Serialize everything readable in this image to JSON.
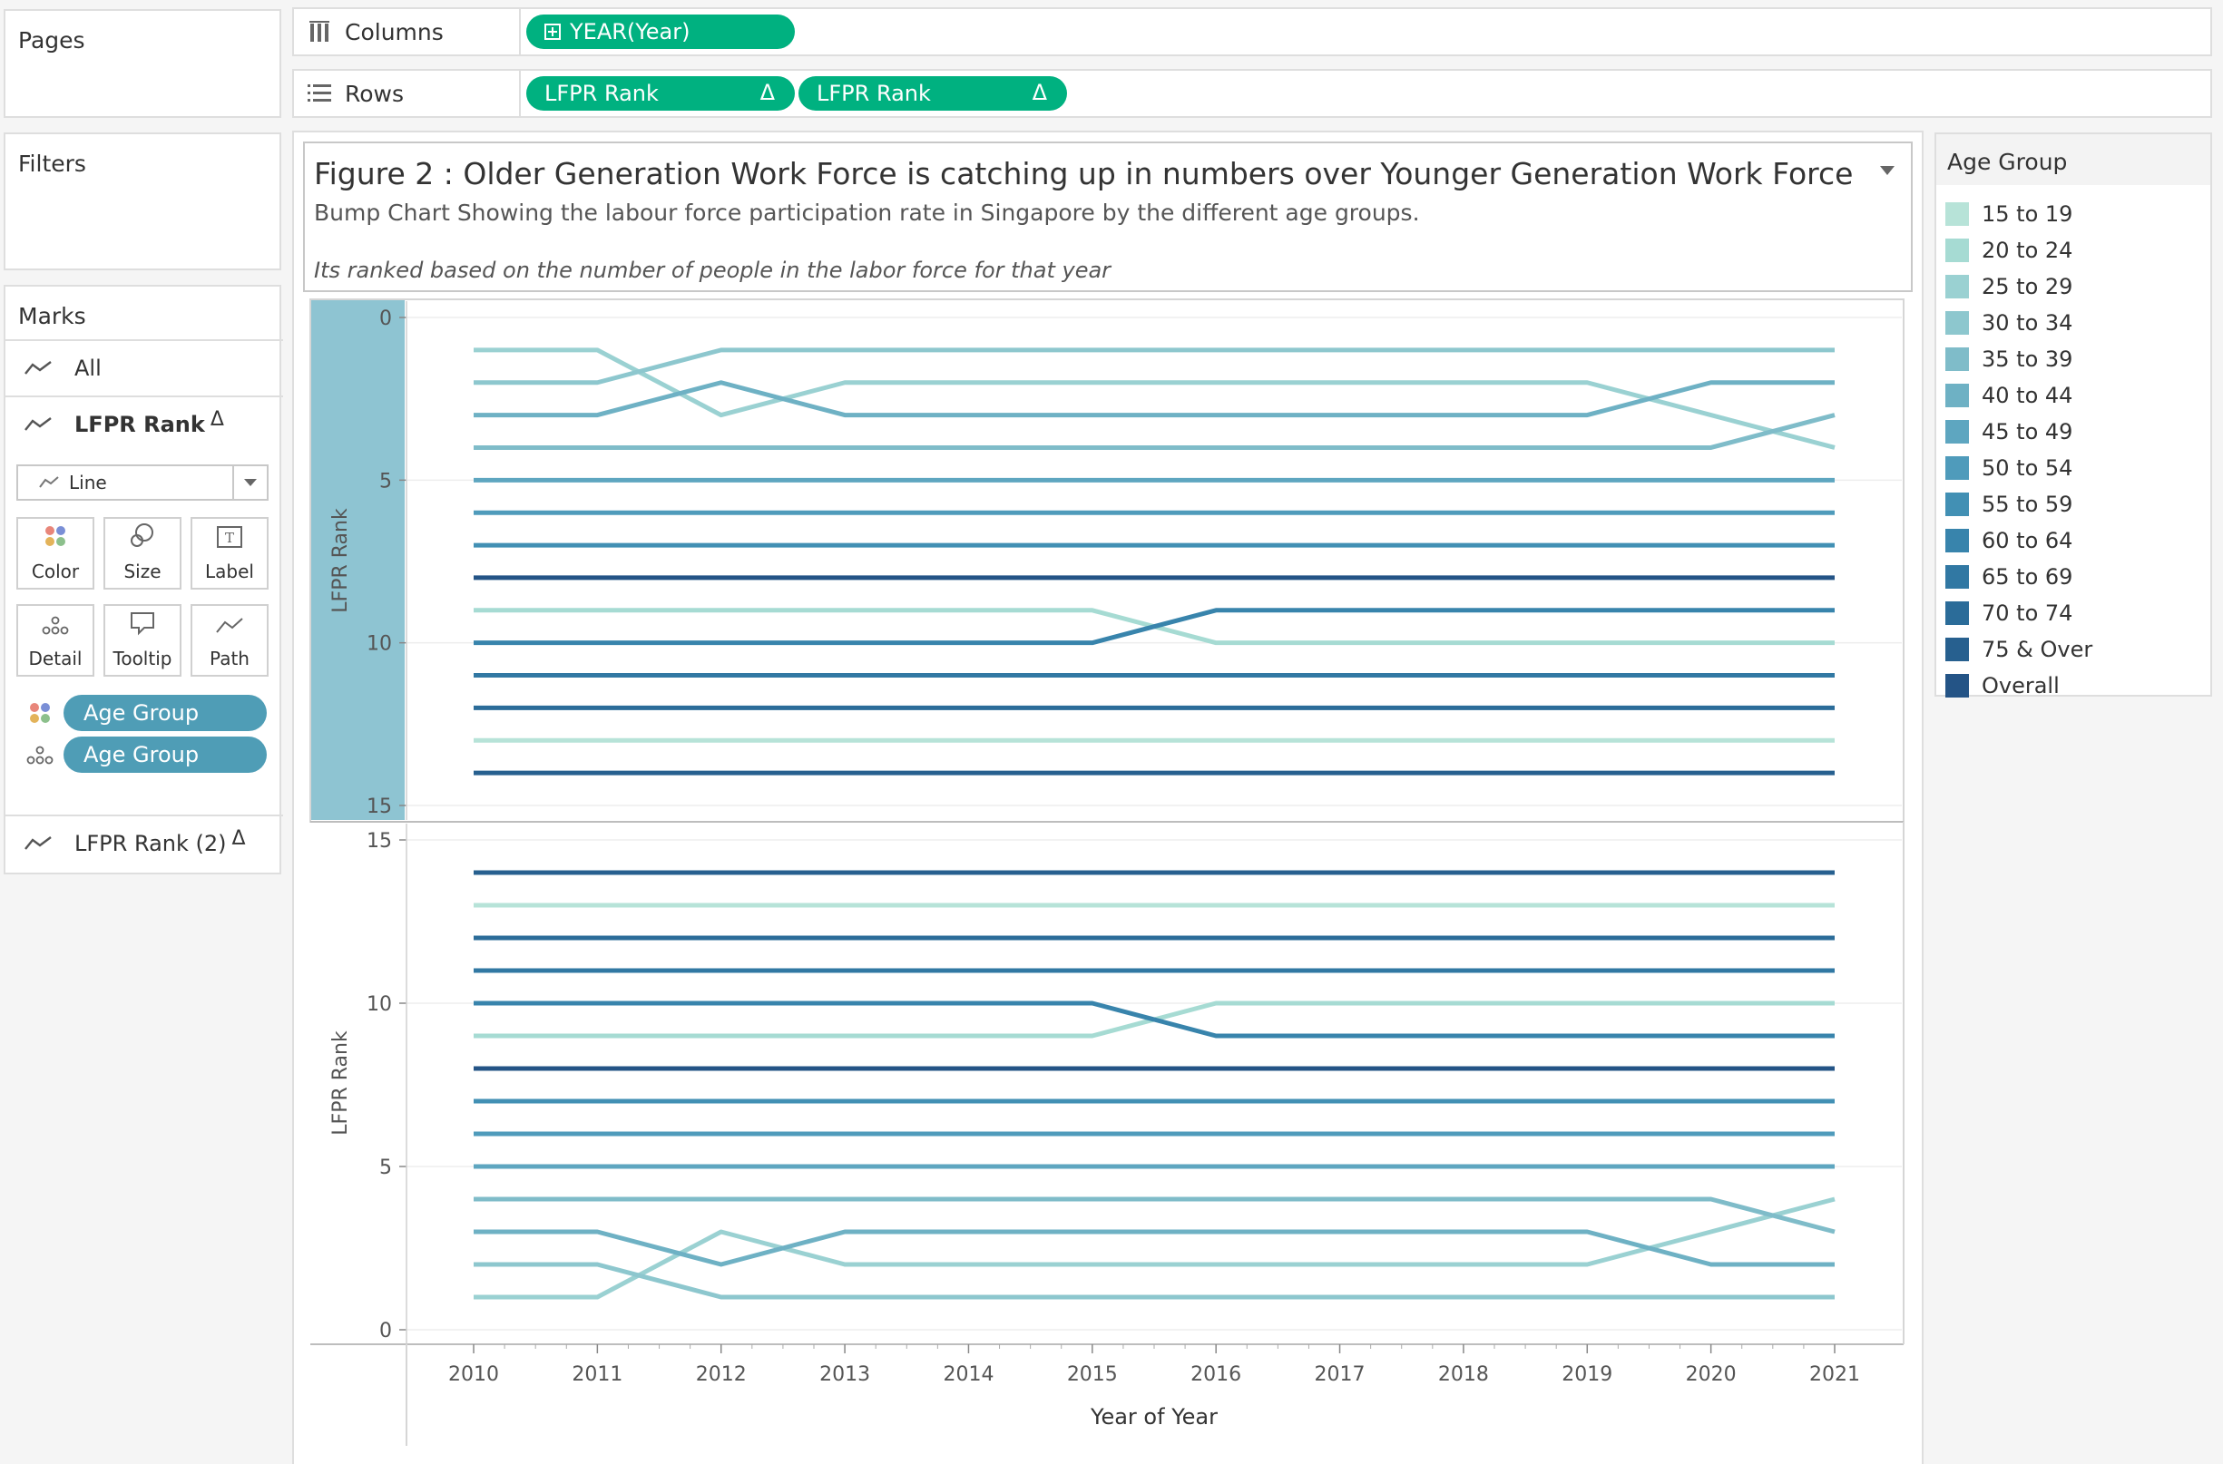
{
  "left_panel": {
    "pages_title": "Pages",
    "filters_title": "Filters",
    "marks_title": "Marks",
    "marks_all": "All",
    "marks_lfpr_rank": "LFPR Rank",
    "mark_type": "Line",
    "cards": [
      "Color",
      "Size",
      "Label",
      "Detail",
      "Tooltip",
      "Path"
    ],
    "color_field": "Age Group",
    "detail_field": "Age Group",
    "marks_lfpr_rank2": "LFPR Rank (2)",
    "delta_symbol": "Δ"
  },
  "shelves": {
    "columns_label": "Columns",
    "columns_pill": "YEAR(Year)",
    "rows_label": "Rows",
    "rows_pill_1": "LFPR Rank",
    "rows_pill_2": "LFPR Rank",
    "pill_color": "#00b180"
  },
  "title_box": {
    "title": "Figure 2 : Older Generation Work Force is catching up in numbers over  Younger Generation Work Force",
    "subtitle": "Bump Chart Showing the labour force participation rate in Singapore by the different age groups.",
    "note": "Its ranked based on the number of people in the labor force for that year"
  },
  "legend": {
    "title": "Age Group",
    "items": [
      {
        "label": "15 to 19",
        "color": "#b7e3d8"
      },
      {
        "label": "20 to 24",
        "color": "#a6dbd3"
      },
      {
        "label": "25 to 29",
        "color": "#9ad1d2"
      },
      {
        "label": "30 to 34",
        "color": "#8dc7ce"
      },
      {
        "label": "35 to 39",
        "color": "#7fbcc9"
      },
      {
        "label": "40 to 44",
        "color": "#6eb1c4"
      },
      {
        "label": "45 to 49",
        "color": "#5ea6c0"
      },
      {
        "label": "50 to 54",
        "color": "#4f9bbb"
      },
      {
        "label": "55 to 59",
        "color": "#4290b4"
      },
      {
        "label": "60 to 64",
        "color": "#3884ac"
      },
      {
        "label": "65 to 69",
        "color": "#3178a3"
      },
      {
        "label": "70 to 74",
        "color": "#2b6c99"
      },
      {
        "label": "75 & Over",
        "color": "#27608f"
      },
      {
        "label": "Overall",
        "color": "#245486"
      }
    ]
  },
  "chart_data": [
    {
      "type": "line",
      "ylabel": "LFPR Rank",
      "ylim": [
        0,
        15
      ],
      "y_reversed": true,
      "yticks": [
        0,
        5,
        10,
        15
      ],
      "x": [
        2010,
        2011,
        2012,
        2013,
        2014,
        2015,
        2016,
        2017,
        2018,
        2019,
        2020,
        2021
      ],
      "series": [
        {
          "name": "15 to 19",
          "color": "#b7e3d8",
          "values": [
            13,
            13,
            13,
            13,
            13,
            13,
            13,
            13,
            13,
            13,
            13,
            13
          ]
        },
        {
          "name": "20 to 24",
          "color": "#a6dbd3",
          "values": [
            9,
            9,
            9,
            9,
            9,
            9,
            10,
            10,
            10,
            10,
            10,
            10
          ]
        },
        {
          "name": "25 to 29",
          "color": "#9ad1d2",
          "values": [
            1,
            1,
            3,
            2,
            2,
            2,
            2,
            2,
            2,
            2,
            3,
            4
          ]
        },
        {
          "name": "30 to 34",
          "color": "#8dc7ce",
          "values": [
            2,
            2,
            1,
            1,
            1,
            1,
            1,
            1,
            1,
            1,
            1,
            1
          ]
        },
        {
          "name": "35 to 39",
          "color": "#7fbcc9",
          "values": [
            4,
            4,
            4,
            4,
            4,
            4,
            4,
            4,
            4,
            4,
            4,
            3
          ]
        },
        {
          "name": "40 to 44",
          "color": "#6eb1c4",
          "values": [
            3,
            3,
            2,
            3,
            3,
            3,
            3,
            3,
            3,
            3,
            2,
            2
          ]
        },
        {
          "name": "45 to 49",
          "color": "#5ea6c0",
          "values": [
            5,
            5,
            5,
            5,
            5,
            5,
            5,
            5,
            5,
            5,
            5,
            5
          ]
        },
        {
          "name": "50 to 54",
          "color": "#4f9bbb",
          "values": [
            6,
            6,
            6,
            6,
            6,
            6,
            6,
            6,
            6,
            6,
            6,
            6
          ]
        },
        {
          "name": "55 to 59",
          "color": "#4290b4",
          "values": [
            7,
            7,
            7,
            7,
            7,
            7,
            7,
            7,
            7,
            7,
            7,
            7
          ]
        },
        {
          "name": "60 to 64",
          "color": "#3884ac",
          "values": [
            10,
            10,
            10,
            10,
            10,
            10,
            9,
            9,
            9,
            9,
            9,
            9
          ]
        },
        {
          "name": "65 to 69",
          "color": "#3178a3",
          "values": [
            11,
            11,
            11,
            11,
            11,
            11,
            11,
            11,
            11,
            11,
            11,
            11
          ]
        },
        {
          "name": "70 to 74",
          "color": "#2b6c99",
          "values": [
            12,
            12,
            12,
            12,
            12,
            12,
            12,
            12,
            12,
            12,
            12,
            12
          ]
        },
        {
          "name": "75 & Over",
          "color": "#27608f",
          "values": [
            14,
            14,
            14,
            14,
            14,
            14,
            14,
            14,
            14,
            14,
            14,
            14
          ]
        },
        {
          "name": "Overall",
          "color": "#245486",
          "values": [
            8,
            8,
            8,
            8,
            8,
            8,
            8,
            8,
            8,
            8,
            8,
            8
          ]
        }
      ]
    },
    {
      "type": "line",
      "ylabel": "LFPR Rank",
      "xlabel": "Year of Year",
      "ylim": [
        0,
        15
      ],
      "y_reversed": false,
      "yticks": [
        0,
        5,
        10,
        15
      ],
      "x": [
        2010,
        2011,
        2012,
        2013,
        2014,
        2015,
        2016,
        2017,
        2018,
        2019,
        2020,
        2021
      ],
      "xticks": [
        "2010",
        "2011",
        "2012",
        "2013",
        "2014",
        "2015",
        "2016",
        "2017",
        "2018",
        "2019",
        "2020",
        "2021"
      ],
      "series": [
        {
          "name": "15 to 19",
          "color": "#b7e3d8",
          "values": [
            13,
            13,
            13,
            13,
            13,
            13,
            13,
            13,
            13,
            13,
            13,
            13
          ]
        },
        {
          "name": "20 to 24",
          "color": "#a6dbd3",
          "values": [
            9,
            9,
            9,
            9,
            9,
            9,
            10,
            10,
            10,
            10,
            10,
            10
          ]
        },
        {
          "name": "25 to 29",
          "color": "#9ad1d2",
          "values": [
            1,
            1,
            3,
            2,
            2,
            2,
            2,
            2,
            2,
            2,
            3,
            4
          ]
        },
        {
          "name": "30 to 34",
          "color": "#8dc7ce",
          "values": [
            2,
            2,
            1,
            1,
            1,
            1,
            1,
            1,
            1,
            1,
            1,
            1
          ]
        },
        {
          "name": "35 to 39",
          "color": "#7fbcc9",
          "values": [
            4,
            4,
            4,
            4,
            4,
            4,
            4,
            4,
            4,
            4,
            4,
            3
          ]
        },
        {
          "name": "40 to 44",
          "color": "#6eb1c4",
          "values": [
            3,
            3,
            2,
            3,
            3,
            3,
            3,
            3,
            3,
            3,
            2,
            2
          ]
        },
        {
          "name": "45 to 49",
          "color": "#5ea6c0",
          "values": [
            5,
            5,
            5,
            5,
            5,
            5,
            5,
            5,
            5,
            5,
            5,
            5
          ]
        },
        {
          "name": "50 to 54",
          "color": "#4f9bbb",
          "values": [
            6,
            6,
            6,
            6,
            6,
            6,
            6,
            6,
            6,
            6,
            6,
            6
          ]
        },
        {
          "name": "55 to 59",
          "color": "#4290b4",
          "values": [
            7,
            7,
            7,
            7,
            7,
            7,
            7,
            7,
            7,
            7,
            7,
            7
          ]
        },
        {
          "name": "60 to 64",
          "color": "#3884ac",
          "values": [
            10,
            10,
            10,
            10,
            10,
            10,
            9,
            9,
            9,
            9,
            9,
            9
          ]
        },
        {
          "name": "65 to 69",
          "color": "#3178a3",
          "values": [
            11,
            11,
            11,
            11,
            11,
            11,
            11,
            11,
            11,
            11,
            11,
            11
          ]
        },
        {
          "name": "70 to 74",
          "color": "#2b6c99",
          "values": [
            12,
            12,
            12,
            12,
            12,
            12,
            12,
            12,
            12,
            12,
            12,
            12
          ]
        },
        {
          "name": "75 & Over",
          "color": "#27608f",
          "values": [
            14,
            14,
            14,
            14,
            14,
            14,
            14,
            14,
            14,
            14,
            14,
            14
          ]
        },
        {
          "name": "Overall",
          "color": "#245486",
          "values": [
            8,
            8,
            8,
            8,
            8,
            8,
            8,
            8,
            8,
            8,
            8,
            8
          ]
        }
      ]
    }
  ]
}
